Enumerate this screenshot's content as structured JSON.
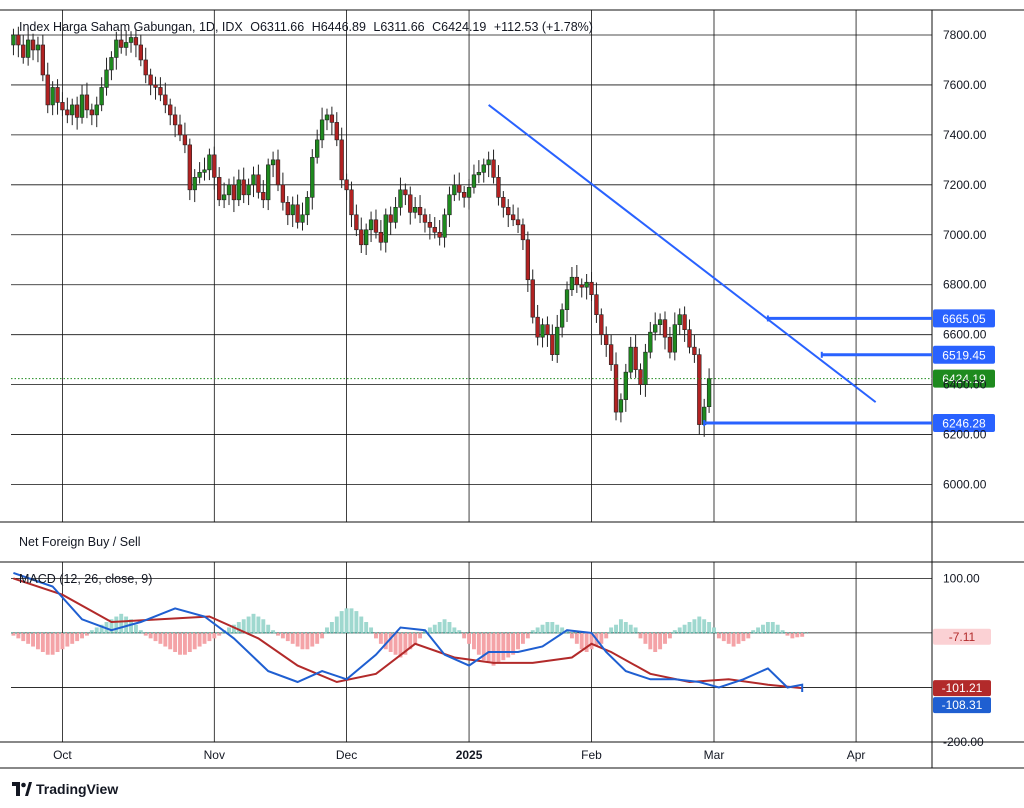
{
  "header": {
    "symbol": "Index Harga Saham Gabungan, 1D, IDX",
    "open": "O6311.66",
    "high": "H6446.89",
    "low": "L6311.66",
    "close": "C6424.19",
    "change": "+112.53 (+1.78%)"
  },
  "panes": {
    "foreign_label": "Net Foreign Buy / Sell",
    "macd_label": "MACD (12, 26, close, 9)"
  },
  "footer": {
    "brand": "TradingView"
  },
  "colors": {
    "up": "#1e8a1e",
    "down": "#b22222",
    "trendline": "#2962ff",
    "level_line": "#2962ff",
    "macd_line": "#1f5fd1",
    "signal_line": "#b22a2a",
    "hist_pos": "#9fd8cf",
    "hist_neg": "#f4a3a7",
    "close_badge": "#1e8a1e"
  },
  "chart_data": [
    {
      "type": "candlestick",
      "ylim": [
        5850,
        7900
      ],
      "y_ticks": [
        6000,
        6200,
        6400,
        6600,
        6800,
        7000,
        7200,
        7400,
        7600,
        7800
      ],
      "y_tick_labels": [
        "6000.00",
        "6200.00",
        "6400.00",
        "6600.00",
        "6800.00",
        "7000.00",
        "7200.00",
        "7400.00",
        "7600.00",
        "7800.00"
      ],
      "x_labels": [
        {
          "label": "Oct",
          "index": 10,
          "bold": false
        },
        {
          "label": "Nov",
          "index": 41,
          "bold": false
        },
        {
          "label": "Dec",
          "index": 68,
          "bold": false
        },
        {
          "label": "2025",
          "index": 93,
          "bold": true
        },
        {
          "label": "Feb",
          "index": 118,
          "bold": false
        },
        {
          "label": "Mar",
          "index": 143,
          "bold": false
        },
        {
          "label": "Apr",
          "index": 172,
          "bold": false
        }
      ],
      "total_slots": 188,
      "closes": [
        7800,
        7760,
        7710,
        7780,
        7740,
        7760,
        7640,
        7520,
        7590,
        7530,
        7500,
        7480,
        7520,
        7470,
        7560,
        7500,
        7480,
        7520,
        7590,
        7660,
        7710,
        7780,
        7750,
        7770,
        7790,
        7760,
        7700,
        7640,
        7600,
        7590,
        7560,
        7520,
        7480,
        7440,
        7400,
        7360,
        7180,
        7230,
        7250,
        7260,
        7320,
        7230,
        7140,
        7160,
        7200,
        7140,
        7220,
        7160,
        7200,
        7240,
        7170,
        7140,
        7280,
        7300,
        7200,
        7130,
        7080,
        7120,
        7050,
        7080,
        7150,
        7310,
        7380,
        7460,
        7480,
        7450,
        7380,
        7220,
        7180,
        7080,
        7020,
        6960,
        7020,
        7060,
        7010,
        6970,
        7080,
        7050,
        7110,
        7180,
        7160,
        7090,
        7110,
        7080,
        7050,
        7030,
        7010,
        6990,
        7080,
        7160,
        7200,
        7170,
        7150,
        7190,
        7240,
        7250,
        7280,
        7300,
        7230,
        7150,
        7110,
        7080,
        7060,
        7040,
        6980,
        6820,
        6670,
        6590,
        6640,
        6600,
        6520,
        6630,
        6700,
        6780,
        6830,
        6800,
        6790,
        6810,
        6760,
        6680,
        6600,
        6560,
        6480,
        6290,
        6340,
        6450,
        6550,
        6460,
        6400,
        6530,
        6610,
        6640,
        6660,
        6590,
        6530,
        6640,
        6680,
        6620,
        6550,
        6520,
        6240,
        6310,
        6424.19
      ],
      "opens": [
        7760,
        7800,
        7760,
        7710,
        7780,
        7740,
        7760,
        7640,
        7520,
        7590,
        7530,
        7500,
        7480,
        7520,
        7470,
        7560,
        7500,
        7480,
        7520,
        7590,
        7660,
        7710,
        7780,
        7750,
        7770,
        7790,
        7760,
        7700,
        7640,
        7600,
        7590,
        7560,
        7520,
        7480,
        7440,
        7400,
        7360,
        7180,
        7230,
        7250,
        7260,
        7320,
        7230,
        7140,
        7160,
        7200,
        7140,
        7220,
        7160,
        7200,
        7240,
        7170,
        7140,
        7280,
        7300,
        7200,
        7130,
        7080,
        7120,
        7050,
        7080,
        7150,
        7310,
        7380,
        7460,
        7480,
        7450,
        7380,
        7220,
        7180,
        7080,
        7020,
        6960,
        7020,
        7060,
        7010,
        6970,
        7080,
        7050,
        7110,
        7180,
        7160,
        7090,
        7110,
        7080,
        7050,
        7030,
        7010,
        6990,
        7080,
        7160,
        7200,
        7170,
        7150,
        7190,
        7240,
        7250,
        7280,
        7300,
        7230,
        7150,
        7110,
        7080,
        7060,
        7040,
        6980,
        6820,
        6670,
        6590,
        6640,
        6600,
        6520,
        6630,
        6700,
        6780,
        6830,
        6800,
        6790,
        6810,
        6760,
        6680,
        6600,
        6560,
        6480,
        6290,
        6340,
        6450,
        6550,
        6460,
        6400,
        6530,
        6610,
        6640,
        6660,
        6590,
        6530,
        6640,
        6680,
        6620,
        6550,
        6520,
        6240,
        6311.66
      ],
      "price_labels": [
        {
          "value": 6665.05,
          "label": "6665.05",
          "kind": "level",
          "line_start_index": 154
        },
        {
          "value": 6519.45,
          "label": "6519.45",
          "kind": "level",
          "line_start_index": 165
        },
        {
          "value": 6424.19,
          "label": "6424.19",
          "kind": "close",
          "line_start_index": 0
        },
        {
          "value": 6246.28,
          "label": "6246.28",
          "kind": "level",
          "line_start_index": 141
        }
      ],
      "trendline": {
        "from": {
          "index": 97,
          "value": 7520
        },
        "to": {
          "index": 176,
          "value": 6330
        }
      }
    },
    {
      "type": "line",
      "name_label": "MACD (12, 26, close, 9)",
      "ylim": [
        -200,
        130
      ],
      "y_ticks": [
        100,
        -200
      ],
      "y_tick_labels": [
        "100.00",
        "-200.00"
      ],
      "value_labels": [
        {
          "value": -7.11,
          "label": "-7.11",
          "kind": "hist"
        },
        {
          "value": -101.21,
          "label": "-101.21",
          "kind": "signal"
        },
        {
          "value": -108.31,
          "label": "-108.31",
          "kind": "macd"
        }
      ],
      "macd_points": [
        [
          0,
          110
        ],
        [
          8,
          85
        ],
        [
          14,
          25
        ],
        [
          20,
          5
        ],
        [
          26,
          20
        ],
        [
          33,
          45
        ],
        [
          39,
          30
        ],
        [
          45,
          -10
        ],
        [
          52,
          -70
        ],
        [
          58,
          -90
        ],
        [
          63,
          -70
        ],
        [
          68,
          -85
        ],
        [
          74,
          -40
        ],
        [
          79,
          10
        ],
        [
          84,
          5
        ],
        [
          88,
          -40
        ],
        [
          93,
          -60
        ],
        [
          97,
          -35
        ],
        [
          103,
          -35
        ],
        [
          108,
          -25
        ],
        [
          113,
          5
        ],
        [
          118,
          0
        ],
        [
          121,
          -35
        ],
        [
          125,
          -70
        ],
        [
          130,
          -85
        ],
        [
          135,
          -85
        ],
        [
          140,
          -90
        ],
        [
          144,
          -100
        ],
        [
          149,
          -85
        ],
        [
          154,
          -65
        ],
        [
          158,
          -100
        ],
        [
          161,
          -95
        ],
        [
          161,
          -108.31
        ]
      ],
      "signal_points": [
        [
          0,
          100
        ],
        [
          10,
          70
        ],
        [
          20,
          20
        ],
        [
          30,
          25
        ],
        [
          40,
          30
        ],
        [
          50,
          -10
        ],
        [
          58,
          -60
        ],
        [
          66,
          -90
        ],
        [
          74,
          -75
        ],
        [
          82,
          -20
        ],
        [
          90,
          -45
        ],
        [
          98,
          -55
        ],
        [
          106,
          -55
        ],
        [
          114,
          -45
        ],
        [
          118,
          -20
        ],
        [
          122,
          -35
        ],
        [
          130,
          -75
        ],
        [
          138,
          -90
        ],
        [
          146,
          -85
        ],
        [
          154,
          -95
        ],
        [
          161,
          -101.21
        ]
      ],
      "histogram": [
        {
          "from": 0,
          "to": 13,
          "values": [
            -5,
            -10,
            -15,
            -20,
            -25,
            -30,
            -35,
            -40,
            -40,
            -35,
            -30,
            -25,
            -20,
            -15
          ]
        },
        {
          "from": 14,
          "to": 28,
          "values": [
            -10,
            -5,
            5,
            10,
            15,
            20,
            25,
            30,
            35,
            30,
            25,
            15,
            5,
            -5,
            -10
          ]
        },
        {
          "from": 29,
          "to": 60,
          "values": [
            -15,
            -20,
            -25,
            -30,
            -35,
            -40,
            -40,
            -35,
            -30,
            -25,
            -20,
            -15,
            -10,
            -5,
            5,
            10,
            15,
            20,
            25,
            30,
            35,
            30,
            25,
            15,
            5,
            -5,
            -10,
            -15,
            -20,
            -25,
            -30,
            -30
          ]
        },
        {
          "from": 61,
          "to": 90,
          "values": [
            -25,
            -20,
            -10,
            10,
            20,
            30,
            40,
            45,
            45,
            40,
            30,
            20,
            10,
            -10,
            -20,
            -30,
            -35,
            -40,
            -45,
            -40,
            -30,
            -20,
            -10,
            5,
            10,
            15,
            20,
            25,
            20,
            10
          ]
        },
        {
          "from": 91,
          "to": 125,
          "values": [
            5,
            -10,
            -20,
            -30,
            -40,
            -50,
            -55,
            -60,
            -55,
            -50,
            -45,
            -40,
            -30,
            -20,
            -10,
            5,
            10,
            15,
            20,
            20,
            15,
            10,
            5,
            -10,
            -20,
            -30,
            -35,
            -30,
            -25,
            -20,
            -10,
            10,
            15,
            25,
            20
          ]
        },
        {
          "from": 126,
          "to": 161,
          "values": [
            15,
            10,
            -10,
            -20,
            -30,
            -35,
            -30,
            -20,
            -10,
            5,
            10,
            15,
            20,
            25,
            30,
            25,
            20,
            10,
            -10,
            -15,
            -20,
            -25,
            -20,
            -15,
            -10,
            5,
            10,
            15,
            20,
            20,
            15,
            5,
            -5,
            -10,
            -8,
            -7.11
          ]
        }
      ]
    }
  ]
}
